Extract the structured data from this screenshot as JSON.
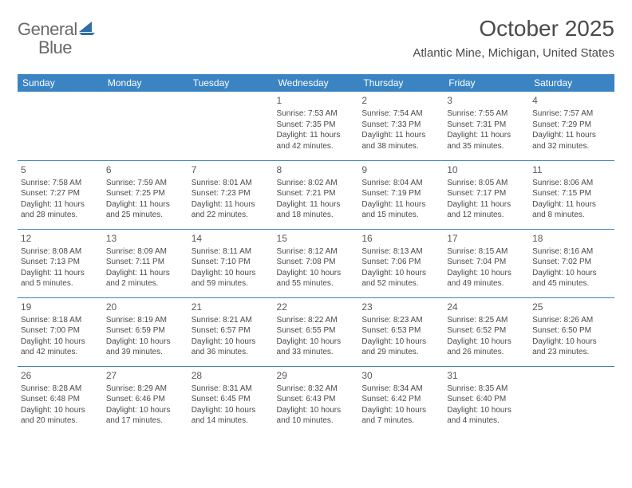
{
  "brand": {
    "word1": "General",
    "word2": "Blue"
  },
  "title": "October 2025",
  "location": "Atlantic Mine, Michigan, United States",
  "theme": {
    "header_bg": "#3a84c4",
    "header_text": "#ffffff",
    "border_color": "#3a7fbf",
    "text_color": "#4a4a4a",
    "logo_gray": "#6a6a6a",
    "logo_blue": "#3a7fbf",
    "title_fontsize": 28,
    "location_fontsize": 15,
    "dayheader_fontsize": 12,
    "cell_fontsize": 10
  },
  "dayHeaders": [
    "Sunday",
    "Monday",
    "Tuesday",
    "Wednesday",
    "Thursday",
    "Friday",
    "Saturday"
  ],
  "weeks": [
    [
      null,
      null,
      null,
      {
        "n": "1",
        "sr": "Sunrise: 7:53 AM",
        "ss": "Sunset: 7:35 PM",
        "d1": "Daylight: 11 hours",
        "d2": "and 42 minutes."
      },
      {
        "n": "2",
        "sr": "Sunrise: 7:54 AM",
        "ss": "Sunset: 7:33 PM",
        "d1": "Daylight: 11 hours",
        "d2": "and 38 minutes."
      },
      {
        "n": "3",
        "sr": "Sunrise: 7:55 AM",
        "ss": "Sunset: 7:31 PM",
        "d1": "Daylight: 11 hours",
        "d2": "and 35 minutes."
      },
      {
        "n": "4",
        "sr": "Sunrise: 7:57 AM",
        "ss": "Sunset: 7:29 PM",
        "d1": "Daylight: 11 hours",
        "d2": "and 32 minutes."
      }
    ],
    [
      {
        "n": "5",
        "sr": "Sunrise: 7:58 AM",
        "ss": "Sunset: 7:27 PM",
        "d1": "Daylight: 11 hours",
        "d2": "and 28 minutes."
      },
      {
        "n": "6",
        "sr": "Sunrise: 7:59 AM",
        "ss": "Sunset: 7:25 PM",
        "d1": "Daylight: 11 hours",
        "d2": "and 25 minutes."
      },
      {
        "n": "7",
        "sr": "Sunrise: 8:01 AM",
        "ss": "Sunset: 7:23 PM",
        "d1": "Daylight: 11 hours",
        "d2": "and 22 minutes."
      },
      {
        "n": "8",
        "sr": "Sunrise: 8:02 AM",
        "ss": "Sunset: 7:21 PM",
        "d1": "Daylight: 11 hours",
        "d2": "and 18 minutes."
      },
      {
        "n": "9",
        "sr": "Sunrise: 8:04 AM",
        "ss": "Sunset: 7:19 PM",
        "d1": "Daylight: 11 hours",
        "d2": "and 15 minutes."
      },
      {
        "n": "10",
        "sr": "Sunrise: 8:05 AM",
        "ss": "Sunset: 7:17 PM",
        "d1": "Daylight: 11 hours",
        "d2": "and 12 minutes."
      },
      {
        "n": "11",
        "sr": "Sunrise: 8:06 AM",
        "ss": "Sunset: 7:15 PM",
        "d1": "Daylight: 11 hours",
        "d2": "and 8 minutes."
      }
    ],
    [
      {
        "n": "12",
        "sr": "Sunrise: 8:08 AM",
        "ss": "Sunset: 7:13 PM",
        "d1": "Daylight: 11 hours",
        "d2": "and 5 minutes."
      },
      {
        "n": "13",
        "sr": "Sunrise: 8:09 AM",
        "ss": "Sunset: 7:11 PM",
        "d1": "Daylight: 11 hours",
        "d2": "and 2 minutes."
      },
      {
        "n": "14",
        "sr": "Sunrise: 8:11 AM",
        "ss": "Sunset: 7:10 PM",
        "d1": "Daylight: 10 hours",
        "d2": "and 59 minutes."
      },
      {
        "n": "15",
        "sr": "Sunrise: 8:12 AM",
        "ss": "Sunset: 7:08 PM",
        "d1": "Daylight: 10 hours",
        "d2": "and 55 minutes."
      },
      {
        "n": "16",
        "sr": "Sunrise: 8:13 AM",
        "ss": "Sunset: 7:06 PM",
        "d1": "Daylight: 10 hours",
        "d2": "and 52 minutes."
      },
      {
        "n": "17",
        "sr": "Sunrise: 8:15 AM",
        "ss": "Sunset: 7:04 PM",
        "d1": "Daylight: 10 hours",
        "d2": "and 49 minutes."
      },
      {
        "n": "18",
        "sr": "Sunrise: 8:16 AM",
        "ss": "Sunset: 7:02 PM",
        "d1": "Daylight: 10 hours",
        "d2": "and 45 minutes."
      }
    ],
    [
      {
        "n": "19",
        "sr": "Sunrise: 8:18 AM",
        "ss": "Sunset: 7:00 PM",
        "d1": "Daylight: 10 hours",
        "d2": "and 42 minutes."
      },
      {
        "n": "20",
        "sr": "Sunrise: 8:19 AM",
        "ss": "Sunset: 6:59 PM",
        "d1": "Daylight: 10 hours",
        "d2": "and 39 minutes."
      },
      {
        "n": "21",
        "sr": "Sunrise: 8:21 AM",
        "ss": "Sunset: 6:57 PM",
        "d1": "Daylight: 10 hours",
        "d2": "and 36 minutes."
      },
      {
        "n": "22",
        "sr": "Sunrise: 8:22 AM",
        "ss": "Sunset: 6:55 PM",
        "d1": "Daylight: 10 hours",
        "d2": "and 33 minutes."
      },
      {
        "n": "23",
        "sr": "Sunrise: 8:23 AM",
        "ss": "Sunset: 6:53 PM",
        "d1": "Daylight: 10 hours",
        "d2": "and 29 minutes."
      },
      {
        "n": "24",
        "sr": "Sunrise: 8:25 AM",
        "ss": "Sunset: 6:52 PM",
        "d1": "Daylight: 10 hours",
        "d2": "and 26 minutes."
      },
      {
        "n": "25",
        "sr": "Sunrise: 8:26 AM",
        "ss": "Sunset: 6:50 PM",
        "d1": "Daylight: 10 hours",
        "d2": "and 23 minutes."
      }
    ],
    [
      {
        "n": "26",
        "sr": "Sunrise: 8:28 AM",
        "ss": "Sunset: 6:48 PM",
        "d1": "Daylight: 10 hours",
        "d2": "and 20 minutes."
      },
      {
        "n": "27",
        "sr": "Sunrise: 8:29 AM",
        "ss": "Sunset: 6:46 PM",
        "d1": "Daylight: 10 hours",
        "d2": "and 17 minutes."
      },
      {
        "n": "28",
        "sr": "Sunrise: 8:31 AM",
        "ss": "Sunset: 6:45 PM",
        "d1": "Daylight: 10 hours",
        "d2": "and 14 minutes."
      },
      {
        "n": "29",
        "sr": "Sunrise: 8:32 AM",
        "ss": "Sunset: 6:43 PM",
        "d1": "Daylight: 10 hours",
        "d2": "and 10 minutes."
      },
      {
        "n": "30",
        "sr": "Sunrise: 8:34 AM",
        "ss": "Sunset: 6:42 PM",
        "d1": "Daylight: 10 hours",
        "d2": "and 7 minutes."
      },
      {
        "n": "31",
        "sr": "Sunrise: 8:35 AM",
        "ss": "Sunset: 6:40 PM",
        "d1": "Daylight: 10 hours",
        "d2": "and 4 minutes."
      },
      null
    ]
  ]
}
